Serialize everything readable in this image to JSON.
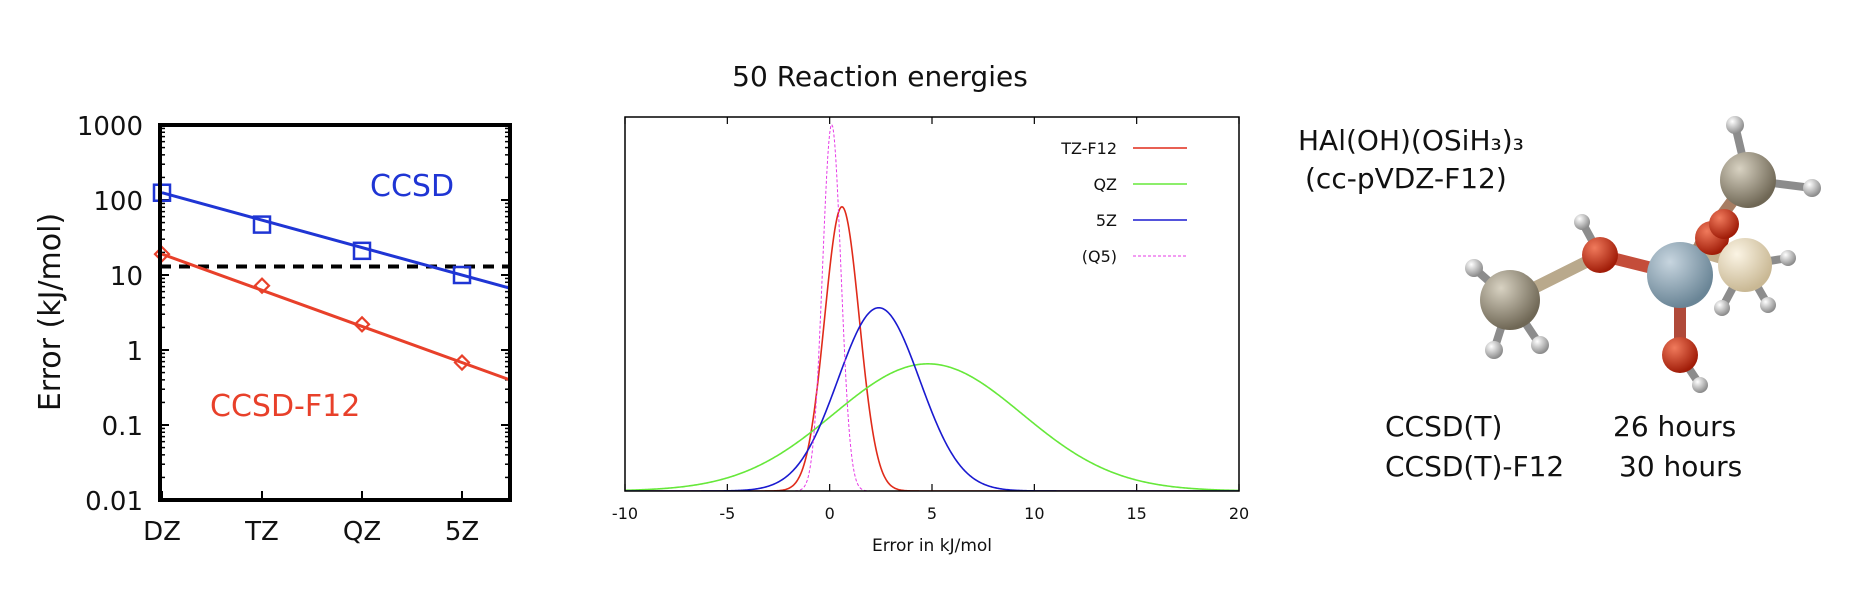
{
  "colors": {
    "ccsd": "#1f35d4",
    "ccsd_f12": "#e8402a",
    "tz_f12": "#e02b1a",
    "qz": "#66e83a",
    "fivez": "#1a1ad0",
    "q5": "#e63ae6",
    "reference_line": "#000000"
  },
  "chart_data": [
    {
      "type": "line",
      "title": "",
      "xlabel": "",
      "ylabel": "Error (kJ/mol)",
      "yscale": "log",
      "ylim": [
        0.01,
        1000
      ],
      "x_tick_labels": [
        "DZ",
        "TZ",
        "QZ",
        "5Z"
      ],
      "y_tick_labels": [
        "1000",
        "100",
        "10",
        "1",
        "0.1",
        "0.01"
      ],
      "categories": [
        "DZ",
        "TZ",
        "QZ",
        "5Z"
      ],
      "series": [
        {
          "name": "CCSD",
          "marker": "square",
          "values": [
            125,
            47,
            21,
            10
          ]
        },
        {
          "name": "CCSD-F12",
          "marker": "diamond",
          "values": [
            19,
            7.2,
            2.2,
            0.68
          ]
        }
      ],
      "reference_line": {
        "style": "dashed",
        "value": 13
      },
      "grid": false
    },
    {
      "type": "line",
      "title": "50 Reaction energies",
      "xlabel": "Error in kJ/mol",
      "ylabel": "",
      "xlim": [
        -10,
        20
      ],
      "x_ticks": [
        -10,
        -5,
        0,
        5,
        10,
        15,
        20
      ],
      "y_ticks_visible": false,
      "legend_position": "top-right",
      "grid": false,
      "series": [
        {
          "name": "TZ-F12",
          "shape": "gaussian",
          "mean": 0.6,
          "sd": 0.85,
          "peak": 0.76,
          "style": "solid"
        },
        {
          "name": "QZ",
          "shape": "gaussian",
          "mean": 4.8,
          "sd": 4.6,
          "peak": 0.34,
          "style": "solid"
        },
        {
          "name": "5Z",
          "shape": "gaussian",
          "mean": 2.4,
          "sd": 2.0,
          "peak": 0.49,
          "style": "solid"
        },
        {
          "name": "(Q5)",
          "shape": "gaussian",
          "mean": 0.1,
          "sd": 0.45,
          "peak": 0.98,
          "style": "dashed"
        }
      ]
    }
  ],
  "labels": {
    "ccsd": "CCSD",
    "ccsd_f12": "CCSD-F12"
  },
  "molecule": {
    "formula": "HAl(OH)(OSiH₃)₃",
    "basis": "(cc-pVDZ-F12)"
  },
  "timings": [
    {
      "method": "CCSD(T)",
      "time": "26 hours"
    },
    {
      "method": "CCSD(T)-F12",
      "time": "30 hours"
    }
  ]
}
